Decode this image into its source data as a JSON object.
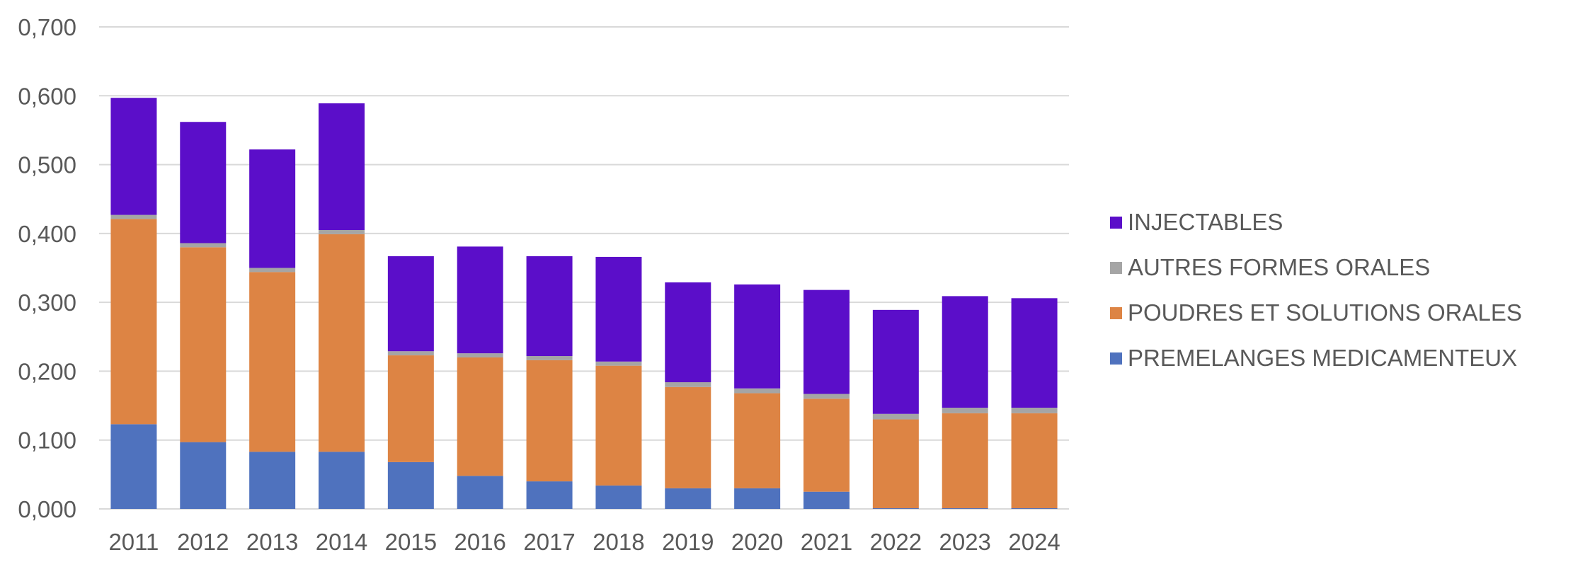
{
  "chart_data": {
    "type": "bar",
    "stacked": true,
    "title": "",
    "xlabel": "",
    "ylabel": "",
    "ylim": [
      0,
      0.7
    ],
    "y_ticks": [
      "0,000",
      "0,100",
      "0,200",
      "0,300",
      "0,400",
      "0,500",
      "0,600",
      "0,700"
    ],
    "grid": true,
    "legend_position": "right",
    "categories": [
      "2011",
      "2012",
      "2013",
      "2014",
      "2015",
      "2016",
      "2017",
      "2018",
      "2019",
      "2020",
      "2021",
      "2022",
      "2023",
      "2024"
    ],
    "series": [
      {
        "name": "PREMELANGES MEDICAMENTEUX",
        "color": "#4F72BE",
        "values": [
          0.123,
          0.097,
          0.083,
          0.083,
          0.068,
          0.048,
          0.04,
          0.034,
          0.03,
          0.03,
          0.025,
          0.001,
          0.001,
          0.001
        ]
      },
      {
        "name": "POUDRES ET SOLUTIONS ORALES",
        "color": "#DD8444",
        "values": [
          0.298,
          0.283,
          0.261,
          0.316,
          0.155,
          0.172,
          0.176,
          0.174,
          0.147,
          0.138,
          0.135,
          0.129,
          0.138,
          0.138
        ]
      },
      {
        "name": "AUTRES FORMES ORALES",
        "color": "#A5A5A5",
        "values": [
          0.006,
          0.006,
          0.006,
          0.006,
          0.006,
          0.006,
          0.006,
          0.006,
          0.007,
          0.007,
          0.007,
          0.008,
          0.008,
          0.008
        ]
      },
      {
        "name": "INJECTABLES",
        "color": "#5B0EC9",
        "values": [
          0.17,
          0.176,
          0.172,
          0.184,
          0.138,
          0.155,
          0.145,
          0.152,
          0.145,
          0.151,
          0.151,
          0.151,
          0.162,
          0.159
        ]
      }
    ],
    "legend_order": [
      "INJECTABLES",
      "AUTRES FORMES ORALES",
      "POUDRES ET SOLUTIONS ORALES",
      "PREMELANGES MEDICAMENTEUX"
    ]
  }
}
